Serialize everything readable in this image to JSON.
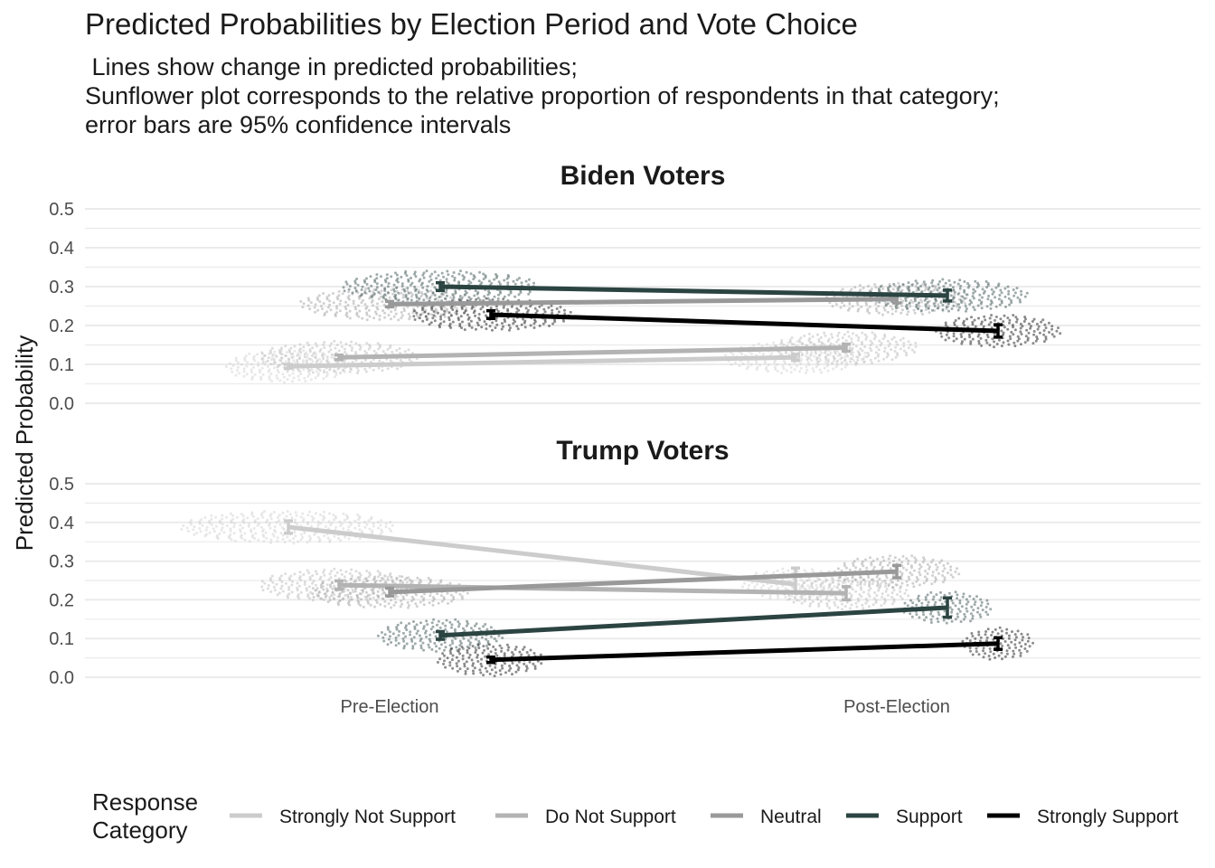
{
  "chart_data": {
    "type": "line",
    "title": "Predicted Probabilities by Election Period and Vote Choice",
    "subtitle": " Lines show change in predicted probabilities;\nSunflower plot corresponds to the relative proportion of respondents in that category;\nerror bars are 95% confidence intervals",
    "ylabel": "Predicted Probability",
    "xlabel": "",
    "categories": [
      "Pre-Election",
      "Post-Election"
    ],
    "ylim": [
      0,
      0.5
    ],
    "yticks": [
      "0.0",
      "0.1",
      "0.2",
      "0.3",
      "0.4",
      "0.5"
    ],
    "grid": true,
    "legend": {
      "title": "Response\nCategory",
      "position": "bottom",
      "entries": [
        "Strongly Not Support",
        "Do Not Support",
        "Neutral",
        "Support",
        "Strongly Support"
      ]
    },
    "colors": {
      "Strongly Not Support": "#cccccc",
      "Do Not Support": "#b3b3b3",
      "Neutral": "#999999",
      "Support": "#2b4442",
      "Strongly Support": "#000000"
    },
    "panels": [
      {
        "title": "Biden Voters",
        "series": [
          {
            "name": "Strongly Not Support",
            "values": [
              0.095,
              0.118
            ],
            "ci": [
              [
                0.09,
                0.1
              ],
              [
                0.11,
                0.126
              ]
            ],
            "spread": [
              0.07,
              0.08
            ]
          },
          {
            "name": "Do Not Support",
            "values": [
              0.118,
              0.143
            ],
            "ci": [
              [
                0.112,
                0.124
              ],
              [
                0.134,
                0.152
              ]
            ],
            "spread": [
              0.09,
              0.08
            ]
          },
          {
            "name": "Neutral",
            "values": [
              0.255,
              0.268
            ],
            "ci": [
              [
                0.248,
                0.262
              ],
              [
                0.258,
                0.278
              ]
            ],
            "spread": [
              0.1,
              0.08
            ]
          },
          {
            "name": "Support",
            "values": [
              0.3,
              0.277
            ],
            "ci": [
              [
                0.29,
                0.31
              ],
              [
                0.263,
                0.291
              ]
            ],
            "spread": [
              0.11,
              0.09
            ]
          },
          {
            "name": "Strongly Support",
            "values": [
              0.228,
              0.186
            ],
            "ci": [
              [
                0.218,
                0.238
              ],
              [
                0.17,
                0.202
              ]
            ],
            "spread": [
              0.09,
              0.07
            ]
          }
        ]
      },
      {
        "title": "Trump Voters",
        "series": [
          {
            "name": "Strongly Not Support",
            "values": [
              0.388,
              0.24
            ],
            "ci": [
              [
                0.372,
                0.404
              ],
              [
                0.22,
                0.282
              ]
            ],
            "spread": [
              0.12,
              0.06
            ]
          },
          {
            "name": "Do Not Support",
            "values": [
              0.238,
              0.217
            ],
            "ci": [
              [
                0.227,
                0.249
              ],
              [
                0.2,
                0.234
              ]
            ],
            "spread": [
              0.09,
              0.07
            ]
          },
          {
            "name": "Neutral",
            "values": [
              0.22,
              0.273
            ],
            "ci": [
              [
                0.21,
                0.23
              ],
              [
                0.257,
                0.289
              ]
            ],
            "spread": [
              0.09,
              0.07
            ]
          },
          {
            "name": "Support",
            "values": [
              0.108,
              0.18
            ],
            "ci": [
              [
                0.098,
                0.118
              ],
              [
                0.155,
                0.205
              ]
            ],
            "spread": [
              0.07,
              0.05
            ]
          },
          {
            "name": "Strongly Support",
            "values": [
              0.045,
              0.087
            ],
            "ci": [
              [
                0.038,
                0.052
              ],
              [
                0.072,
                0.102
              ]
            ],
            "spread": [
              0.06,
              0.04
            ]
          }
        ]
      }
    ]
  }
}
